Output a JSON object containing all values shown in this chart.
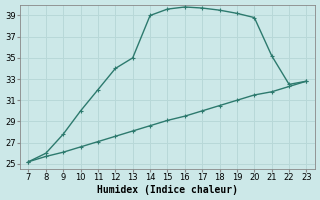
{
  "title": "",
  "xlabel": "Humidex (Indice chaleur)",
  "ylabel": "",
  "background_color": "#cce8e8",
  "grid_color": "#b8d8d8",
  "line_color": "#2d7a6e",
  "x_main": [
    7,
    8,
    9,
    10,
    11,
    12,
    13,
    14,
    15,
    16,
    17,
    18,
    19,
    20,
    21,
    22,
    23
  ],
  "y_main": [
    25.2,
    26.0,
    27.8,
    30.0,
    32.0,
    34.0,
    35.0,
    39.0,
    39.6,
    39.8,
    39.7,
    39.5,
    39.2,
    38.8,
    35.2,
    32.5,
    32.8
  ],
  "x_linear": [
    7,
    8,
    9,
    10,
    11,
    12,
    13,
    14,
    15,
    16,
    17,
    18,
    19,
    20,
    21,
    22,
    23
  ],
  "y_linear": [
    25.2,
    25.7,
    26.1,
    26.6,
    27.1,
    27.6,
    28.1,
    28.6,
    29.1,
    29.5,
    30.0,
    30.5,
    31.0,
    31.5,
    31.8,
    32.3,
    32.8
  ],
  "xlim": [
    6.5,
    23.5
  ],
  "ylim": [
    24.5,
    40.0
  ],
  "xticks": [
    7,
    8,
    9,
    10,
    11,
    12,
    13,
    14,
    15,
    16,
    17,
    18,
    19,
    20,
    21,
    22,
    23
  ],
  "yticks": [
    25,
    27,
    29,
    31,
    33,
    35,
    37,
    39
  ],
  "markersize": 2.5,
  "linewidth": 1.0,
  "tick_fontsize": 6,
  "xlabel_fontsize": 7
}
